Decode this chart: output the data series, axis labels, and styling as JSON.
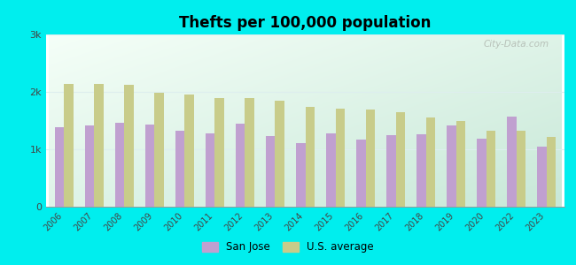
{
  "title": "Thefts per 100,000 population",
  "years": [
    2006,
    2007,
    2008,
    2009,
    2010,
    2011,
    2012,
    2013,
    2014,
    2015,
    2016,
    2017,
    2018,
    2019,
    2020,
    2022,
    2023
  ],
  "san_jose": [
    1380,
    1420,
    1460,
    1430,
    1330,
    1280,
    1450,
    1230,
    1110,
    1270,
    1170,
    1240,
    1260,
    1420,
    1180,
    1570,
    1040
  ],
  "us_average": [
    2140,
    2140,
    2120,
    1990,
    1950,
    1900,
    1900,
    1840,
    1740,
    1710,
    1700,
    1650,
    1560,
    1500,
    1330,
    1330,
    1220
  ],
  "san_jose_color": "#c0a0d0",
  "us_average_color": "#c8cc8a",
  "outer_bg": "#00eeee",
  "ylim": [
    0,
    3000
  ],
  "yticks": [
    0,
    1000,
    2000,
    3000
  ],
  "ytick_labels": [
    "0",
    "1k",
    "2k",
    "3k"
  ],
  "bar_width": 0.32,
  "legend_san_jose": "San Jose",
  "legend_us": "U.S. average",
  "watermark": "City-Data.com",
  "bg_colors": [
    "#c8e8d8",
    "#eef8f2"
  ],
  "grid_color": "#ddeeee"
}
